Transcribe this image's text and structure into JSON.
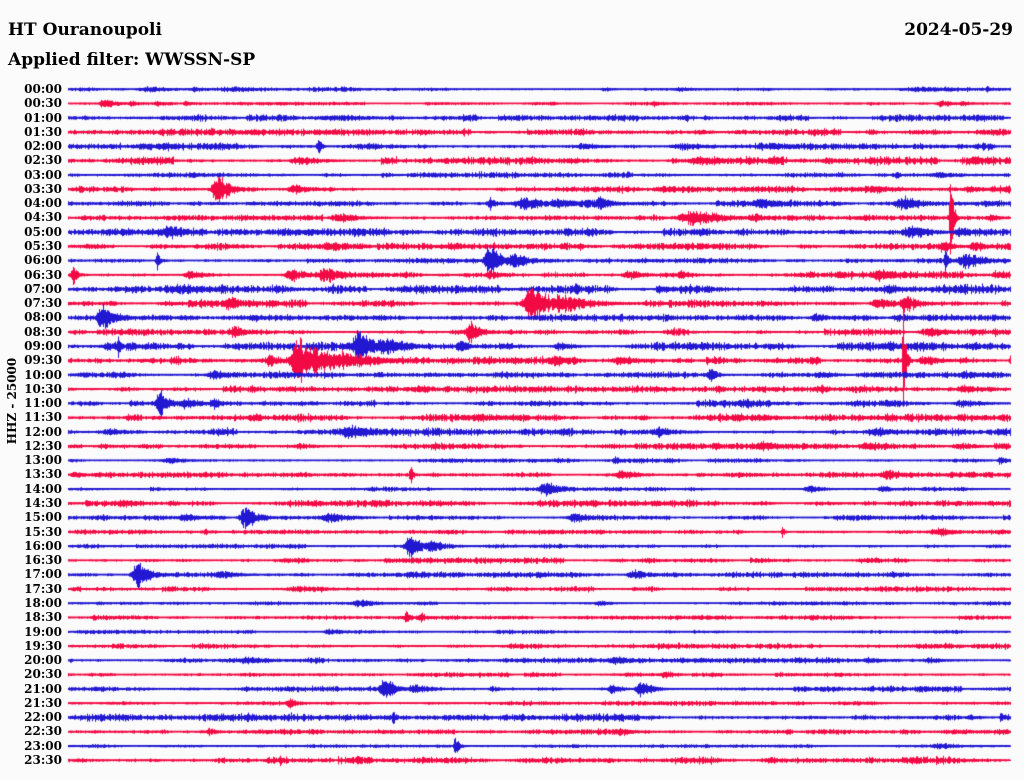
{
  "header": {
    "station": "HT Ouranoupoli",
    "filter": "Applied filter: WWSSN-SP",
    "date": "2024-05-29"
  },
  "chart_data": {
    "type": "line",
    "kind": "helicorder-dayplot",
    "title": "HT Ouranoupoli",
    "subtitle": "Applied filter: WWSSN-SP",
    "date": "2024-05-29",
    "ylabel": "HHZ - 25000",
    "minutes_per_row": 30,
    "legend": "rows alternate blue/red, one trace per 30 minutes, 00:00 to 23:30",
    "colors": {
      "blue": "#2318D2",
      "red": "#F30A45"
    },
    "rows": [
      {
        "t": "00:00",
        "c": "blue",
        "n": 1.1,
        "ev": [
          [
            150,
            3,
            12
          ],
          [
            195,
            2.5,
            8
          ],
          [
            235,
            3,
            10
          ],
          [
            605,
            2,
            5
          ],
          [
            680,
            2.5,
            8
          ],
          [
            920,
            2.5,
            20
          ],
          [
            987,
            4,
            2
          ]
        ]
      },
      {
        "t": "00:30",
        "c": "red",
        "n": 0.8,
        "ev": [
          [
            105,
            5,
            6
          ],
          [
            132,
            3,
            4
          ],
          [
            158,
            3,
            3
          ],
          [
            186,
            2.5,
            3
          ],
          [
            655,
            3,
            5
          ],
          [
            942,
            3.5,
            6
          ],
          [
            962,
            3,
            5
          ]
        ]
      },
      {
        "t": "01:00",
        "c": "blue",
        "n": 1.7,
        "ev": [
          [
            340,
            3,
            25
          ]
        ]
      },
      {
        "t": "01:30",
        "c": "red",
        "n": 1.7,
        "ev": [
          [
            250,
            3,
            18
          ],
          [
            700,
            2.5,
            10
          ]
        ]
      },
      {
        "t": "02:00",
        "c": "blue",
        "n": 2.0,
        "ev": [
          [
            150,
            3,
            28
          ],
          [
            318,
            9,
            1.8
          ],
          [
            585,
            3.5,
            10
          ],
          [
            685,
            3.5,
            16
          ],
          [
            775,
            3.5,
            18
          ]
        ]
      },
      {
        "t": "02:30",
        "c": "red",
        "n": 2.0,
        "ev": [
          [
            150,
            4,
            8
          ],
          [
            300,
            5,
            10
          ],
          [
            700,
            5,
            14
          ],
          [
            827,
            3.5,
            6
          ],
          [
            975,
            4,
            8
          ]
        ]
      },
      {
        "t": "03:00",
        "c": "blue",
        "n": 1.4,
        "ev": [
          [
            896,
            5,
            1.8
          ],
          [
            940,
            3,
            14
          ]
        ]
      },
      {
        "t": "03:30",
        "c": "red",
        "n": 1.7,
        "ev": [
          [
            218,
            15,
            6
          ],
          [
            295,
            5,
            8
          ],
          [
            875,
            4,
            18
          ],
          [
            970,
            4,
            8
          ]
        ]
      },
      {
        "t": "04:00",
        "c": "blue",
        "n": 1.7,
        "ev": [
          [
            490,
            6,
            4
          ],
          [
            525,
            6,
            13
          ],
          [
            558,
            6,
            9
          ],
          [
            600,
            7,
            8
          ],
          [
            762,
            6,
            11
          ],
          [
            905,
            7,
            11
          ],
          [
            987,
            4,
            4
          ]
        ]
      },
      {
        "t": "04:30",
        "c": "red",
        "n": 1.4,
        "ev": [
          [
            340,
            5,
            10
          ],
          [
            695,
            8,
            16
          ],
          [
            755,
            5,
            8
          ],
          [
            950,
            85,
            1.1
          ],
          [
            990,
            4,
            5
          ]
        ]
      },
      {
        "t": "05:00",
        "c": "blue",
        "n": 1.9,
        "ev": [
          [
            128,
            4,
            8
          ],
          [
            170,
            7,
            11
          ],
          [
            310,
            4,
            10
          ],
          [
            912,
            7,
            10
          ],
          [
            962,
            5,
            9
          ]
        ]
      },
      {
        "t": "05:30",
        "c": "red",
        "n": 1.7,
        "ev": [
          [
            330,
            6,
            11
          ],
          [
            943,
            6,
            6
          ],
          [
            976,
            5,
            8
          ]
        ]
      },
      {
        "t": "06:00",
        "c": "blue",
        "n": 1.4,
        "ev": [
          [
            157,
            10,
            1.8
          ],
          [
            490,
            16,
            6
          ],
          [
            513,
            8,
            8
          ],
          [
            945,
            14,
            1.4
          ],
          [
            966,
            9,
            9
          ]
        ]
      },
      {
        "t": "06:30",
        "c": "red",
        "n": 1.9,
        "ev": [
          [
            73,
            13,
            2.2
          ],
          [
            190,
            5,
            6
          ],
          [
            292,
            7,
            8
          ],
          [
            327,
            8,
            11
          ],
          [
            490,
            5,
            5
          ],
          [
            630,
            5,
            8
          ],
          [
            682,
            5,
            6
          ],
          [
            880,
            6,
            10
          ],
          [
            995,
            5,
            4
          ]
        ]
      },
      {
        "t": "07:00",
        "c": "blue",
        "n": 2.3,
        "ev": [
          [
            180,
            5,
            10
          ],
          [
            890,
            5,
            11
          ]
        ]
      },
      {
        "t": "07:30",
        "c": "red",
        "n": 1.9,
        "ev": [
          [
            230,
            7,
            9
          ],
          [
            532,
            20,
            8
          ],
          [
            562,
            10,
            14
          ],
          [
            880,
            6,
            9
          ],
          [
            906,
            9,
            7
          ]
        ]
      },
      {
        "t": "08:00",
        "c": "blue",
        "n": 1.7,
        "ev": [
          [
            103,
            14,
            6
          ],
          [
            255,
            4,
            8
          ],
          [
            815,
            5,
            6
          ],
          [
            900,
            4,
            9
          ]
        ]
      },
      {
        "t": "08:30",
        "c": "red",
        "n": 1.9,
        "ev": [
          [
            235,
            6,
            8
          ],
          [
            470,
            14,
            5
          ],
          [
            930,
            5,
            11
          ],
          [
            995,
            4,
            4
          ]
        ]
      },
      {
        "t": "09:00",
        "c": "blue",
        "n": 2.1,
        "ev": [
          [
            108,
            5,
            6
          ],
          [
            118,
            12,
            1.4
          ],
          [
            360,
            18,
            8
          ],
          [
            386,
            10,
            11
          ],
          [
            460,
            6,
            6
          ],
          [
            560,
            4,
            8
          ],
          [
            890,
            5,
            13
          ]
        ]
      },
      {
        "t": "09:30",
        "c": "red",
        "n": 2.1,
        "ev": [
          [
            270,
            8,
            5
          ],
          [
            298,
            25,
            7
          ],
          [
            316,
            15,
            11
          ],
          [
            342,
            10,
            18
          ],
          [
            555,
            7,
            9
          ],
          [
            622,
            5,
            11
          ],
          [
            903,
            60,
            1.1
          ],
          [
            926,
            5,
            9
          ]
        ]
      },
      {
        "t": "10:00",
        "c": "blue",
        "n": 1.7,
        "ev": [
          [
            215,
            5,
            9
          ],
          [
            710,
            8,
            3.5
          ],
          [
            822,
            4,
            8
          ],
          [
            965,
            5,
            8
          ]
        ]
      },
      {
        "t": "10:30",
        "c": "red",
        "n": 1.7,
        "ev": [
          [
            420,
            4,
            10
          ],
          [
            820,
            5,
            6
          ],
          [
            965,
            5,
            8
          ]
        ]
      },
      {
        "t": "11:00",
        "c": "blue",
        "n": 1.9,
        "ev": [
          [
            160,
            14,
            4.5
          ],
          [
            186,
            6,
            8
          ],
          [
            213,
            6,
            5
          ],
          [
            745,
            5,
            9
          ],
          [
            965,
            4,
            11
          ]
        ]
      },
      {
        "t": "11:30",
        "c": "red",
        "n": 1.9,
        "ev": [
          [
            480,
            4,
            18
          ],
          [
            760,
            4,
            10
          ]
        ]
      },
      {
        "t": "12:00",
        "c": "blue",
        "n": 1.9,
        "ev": [
          [
            110,
            4,
            9
          ],
          [
            352,
            7,
            16
          ],
          [
            660,
            5,
            11
          ],
          [
            876,
            5,
            11
          ]
        ]
      },
      {
        "t": "12:30",
        "c": "red",
        "n": 1.7,
        "ev": [
          [
            300,
            3,
            10
          ],
          [
            763,
            5,
            11
          ],
          [
            960,
            4,
            9
          ]
        ]
      },
      {
        "t": "13:00",
        "c": "blue",
        "n": 1.1,
        "ev": [
          [
            170,
            3,
            9
          ],
          [
            615,
            5,
            2.5
          ],
          [
            1000,
            4,
            3
          ]
        ]
      },
      {
        "t": "13:30",
        "c": "red",
        "n": 1.4,
        "ev": [
          [
            75,
            4,
            4
          ],
          [
            410,
            10,
            1.4
          ],
          [
            623,
            5,
            9
          ],
          [
            888,
            6,
            9
          ]
        ]
      },
      {
        "t": "14:00",
        "c": "blue",
        "n": 1.1,
        "ev": [
          [
            545,
            9,
            7
          ],
          [
            810,
            4,
            7
          ],
          [
            883,
            4,
            5
          ]
        ]
      },
      {
        "t": "14:30",
        "c": "red",
        "n": 1.7,
        "ev": [
          [
            122,
            4,
            6
          ],
          [
            172,
            3,
            5
          ]
        ]
      },
      {
        "t": "15:00",
        "c": "blue",
        "n": 1.4,
        "ev": [
          [
            186,
            4,
            9
          ],
          [
            245,
            14,
            5.5
          ],
          [
            330,
            5,
            11
          ],
          [
            576,
            5,
            9
          ]
        ]
      },
      {
        "t": "15:30",
        "c": "red",
        "n": 1.1,
        "ev": [
          [
            205,
            3,
            4
          ],
          [
            782,
            6,
            1.4
          ],
          [
            940,
            4,
            11
          ]
        ]
      },
      {
        "t": "16:00",
        "c": "blue",
        "n": 1.1,
        "ev": [
          [
            410,
            13,
            5.5
          ],
          [
            432,
            6,
            8
          ]
        ]
      },
      {
        "t": "16:30",
        "c": "red",
        "n": 1.4,
        "ev": []
      },
      {
        "t": "17:00",
        "c": "blue",
        "n": 1.4,
        "ev": [
          [
            138,
            15,
            6
          ],
          [
            223,
            5,
            8
          ],
          [
            410,
            4,
            6
          ],
          [
            635,
            5,
            8
          ]
        ]
      },
      {
        "t": "17:30",
        "c": "red",
        "n": 1.4,
        "ev": [
          [
            300,
            3,
            16
          ]
        ]
      },
      {
        "t": "18:00",
        "c": "blue",
        "n": 0.9,
        "ev": [
          [
            360,
            4,
            9
          ],
          [
            600,
            2.5,
            7
          ]
        ]
      },
      {
        "t": "18:30",
        "c": "red",
        "n": 1.1,
        "ev": [
          [
            406,
            6,
            2.5
          ],
          [
            421,
            6,
            2.5
          ]
        ]
      },
      {
        "t": "19:00",
        "c": "blue",
        "n": 0.9,
        "ev": [
          [
            330,
            3,
            7
          ]
        ]
      },
      {
        "t": "19:30",
        "c": "red",
        "n": 1.4,
        "ev": []
      },
      {
        "t": "20:00",
        "c": "blue",
        "n": 1.4,
        "ev": [
          [
            250,
            4,
            13
          ],
          [
            616,
            4,
            11
          ],
          [
            700,
            3,
            9
          ],
          [
            800,
            3,
            9
          ],
          [
            870,
            3,
            8
          ],
          [
            930,
            3,
            8
          ]
        ]
      },
      {
        "t": "20:30",
        "c": "red",
        "n": 1.1,
        "ev": [
          [
            665,
            4,
            6
          ]
        ]
      },
      {
        "t": "21:00",
        "c": "blue",
        "n": 1.4,
        "ev": [
          [
            385,
            12,
            5.5
          ],
          [
            415,
            5,
            9
          ],
          [
            612,
            5,
            5
          ],
          [
            641,
            8,
            6
          ],
          [
            920,
            4,
            6
          ]
        ]
      },
      {
        "t": "21:30",
        "c": "red",
        "n": 1.1,
        "ev": [
          [
            290,
            5,
            4.5
          ]
        ]
      },
      {
        "t": "22:00",
        "c": "blue",
        "n": 2.0,
        "ev": [
          [
            393,
            7,
            1.8
          ],
          [
            970,
            3,
            5
          ]
        ]
      },
      {
        "t": "22:30",
        "c": "red",
        "n": 1.4,
        "ev": [
          [
            210,
            4,
            4
          ],
          [
            620,
            4,
            9
          ],
          [
            955,
            3,
            9
          ]
        ]
      },
      {
        "t": "23:00",
        "c": "blue",
        "n": 0.8,
        "ev": [
          [
            455,
            10,
            1.8
          ],
          [
            940,
            3,
            13
          ]
        ]
      },
      {
        "t": "23:30",
        "c": "red",
        "n": 1.9,
        "ev": [
          [
            280,
            6,
            1.8
          ],
          [
            770,
            4,
            4
          ]
        ]
      }
    ]
  }
}
